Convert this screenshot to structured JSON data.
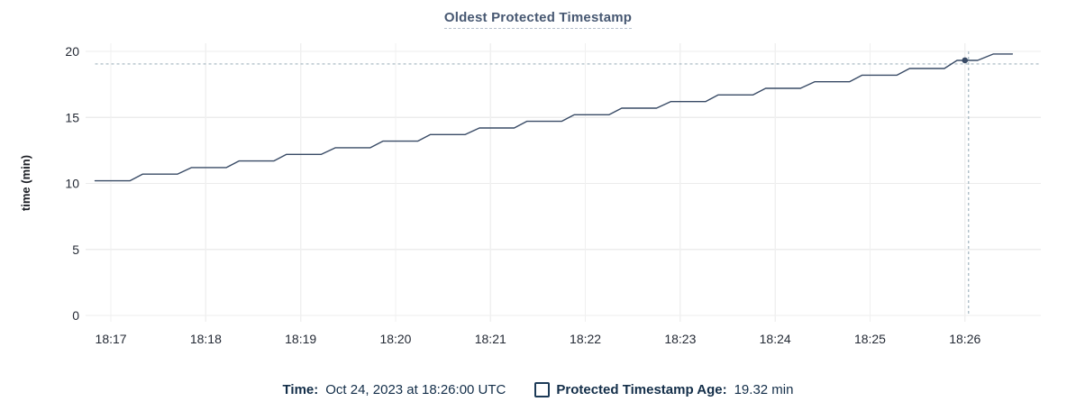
{
  "chart_data": {
    "type": "line",
    "title": "Oldest Protected Timestamp",
    "xlabel": "",
    "ylabel": "time (min)",
    "ylim": [
      0,
      20
    ],
    "yticks": [
      0,
      5,
      10,
      15,
      20
    ],
    "xticks": [
      "18:17",
      "18:18",
      "18:19",
      "18:20",
      "18:21",
      "18:22",
      "18:23",
      "18:24",
      "18:25",
      "18:26"
    ],
    "x_min": "18:16:44",
    "x_max": "18:26:48",
    "grid": true,
    "legend_position": "bottom",
    "series": [
      {
        "name": "Protected Timestamp Age",
        "unit": "min",
        "points": [
          [
            "18:16:50",
            10.2
          ],
          [
            "18:17:12",
            10.2
          ],
          [
            "18:17:20",
            10.7
          ],
          [
            "18:17:42",
            10.7
          ],
          [
            "18:17:51",
            11.2
          ],
          [
            "18:18:13",
            11.2
          ],
          [
            "18:18:21",
            11.7
          ],
          [
            "18:18:43",
            11.7
          ],
          [
            "18:18:51",
            12.2
          ],
          [
            "18:19:13",
            12.2
          ],
          [
            "18:19:22",
            12.7
          ],
          [
            "18:19:44",
            12.7
          ],
          [
            "18:19:52",
            13.2
          ],
          [
            "18:20:14",
            13.2
          ],
          [
            "18:20:22",
            13.7
          ],
          [
            "18:20:44",
            13.7
          ],
          [
            "18:20:53",
            14.2
          ],
          [
            "18:21:15",
            14.2
          ],
          [
            "18:21:23",
            14.7
          ],
          [
            "18:21:45",
            14.7
          ],
          [
            "18:21:53",
            15.2
          ],
          [
            "18:22:15",
            15.2
          ],
          [
            "18:22:23",
            15.7
          ],
          [
            "18:22:45",
            15.7
          ],
          [
            "18:22:54",
            16.2
          ],
          [
            "18:23:16",
            16.2
          ],
          [
            "18:23:24",
            16.7
          ],
          [
            "18:23:46",
            16.7
          ],
          [
            "18:23:54",
            17.2
          ],
          [
            "18:24:16",
            17.2
          ],
          [
            "18:24:25",
            17.7
          ],
          [
            "18:24:47",
            17.7
          ],
          [
            "18:24:55",
            18.2
          ],
          [
            "18:25:17",
            18.2
          ],
          [
            "18:25:25",
            18.7
          ],
          [
            "18:25:47",
            18.7
          ],
          [
            "18:25:55",
            19.32
          ],
          [
            "18:26:08",
            19.32
          ],
          [
            "18:26:18",
            19.8
          ],
          [
            "18:26:30",
            19.8
          ]
        ]
      }
    ],
    "highlight": {
      "time": "18:26:00",
      "value": 19.32
    }
  },
  "footer": {
    "time_label": "Time:",
    "time_value": "Oct 24, 2023 at 18:26:00 UTC",
    "series_label": "Protected Timestamp Age:",
    "series_value": "19.32 min"
  },
  "colors": {
    "line": "#394b66",
    "dot": "#394b66",
    "crosshair": "#a2b5bf",
    "title": "#475872",
    "title_underline": "#b7c1ce",
    "axis_text": "#242a35",
    "footer_text": "#132e49",
    "legend_swatch_border": "#1c3a57",
    "gridline": "#ececec",
    "gridline_vertical": "#f0f0f0",
    "background": "#ffffff"
  }
}
